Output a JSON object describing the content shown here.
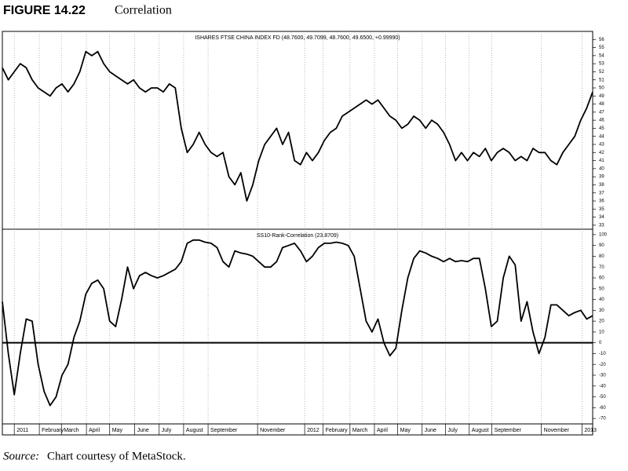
{
  "figure": {
    "label": "FIGURE 14.22",
    "title": "Correlation"
  },
  "source": {
    "label": "Source:",
    "text": "Chart courtesy of MetaStock."
  },
  "chart_data": [
    {
      "type": "line",
      "title": "ISHARES FTSE CHINA INDEX FD (48.7600, 49.7099, 48.7600, 49.6500, +0.99990)",
      "color": "#000000",
      "values": [
        52.5,
        51,
        52,
        53,
        52.5,
        51,
        50,
        49.5,
        49,
        50,
        50.5,
        49.5,
        50.5,
        52,
        54.5,
        54,
        54.5,
        53,
        52,
        51.5,
        51,
        50.5,
        51,
        50,
        49.5,
        50,
        50,
        49.5,
        50.5,
        50,
        45,
        42,
        43,
        44.5,
        43,
        42,
        41.5,
        42,
        39,
        38,
        39.5,
        36,
        38,
        41,
        43,
        44,
        45,
        43,
        44.5,
        41,
        40.5,
        42,
        41,
        42,
        43.5,
        44.5,
        45,
        46.5,
        47,
        47.5,
        48,
        48.5,
        48,
        48.5,
        47.5,
        46.5,
        46,
        45,
        45.5,
        46.5,
        46,
        45,
        46,
        45.5,
        44.5,
        43,
        41,
        42,
        41,
        42,
        41.5,
        42.5,
        41,
        42,
        42.5,
        42,
        41,
        41.5,
        41,
        42.5,
        42,
        42,
        41,
        40.5,
        42,
        43,
        44,
        46,
        47.5,
        49.5
      ],
      "ylim": [
        32.5,
        57
      ],
      "yticks": [
        33,
        34,
        35,
        36,
        37,
        38,
        39,
        40,
        41,
        42,
        43,
        44,
        45,
        46,
        47,
        48,
        49,
        50,
        51,
        52,
        53,
        54,
        55,
        56
      ]
    },
    {
      "type": "line",
      "title": "SS10-Rank-Correlation (23.8709)",
      "color": "#000000",
      "values": [
        38,
        -10,
        -48,
        -10,
        22,
        20,
        -20,
        -45,
        -58,
        -50,
        -30,
        -20,
        5,
        20,
        45,
        55,
        58,
        50,
        20,
        15,
        40,
        70,
        50,
        62,
        65,
        62,
        60,
        62,
        65,
        68,
        75,
        92,
        95,
        95,
        93,
        92,
        88,
        75,
        70,
        85,
        83,
        82,
        80,
        75,
        70,
        70,
        75,
        88,
        90,
        92,
        85,
        75,
        80,
        88,
        92,
        92,
        93,
        92,
        90,
        80,
        50,
        20,
        10,
        22,
        0,
        -12,
        -5,
        30,
        60,
        78,
        85,
        83,
        80,
        78,
        75,
        78,
        75,
        76,
        75,
        78,
        78,
        50,
        15,
        20,
        60,
        80,
        72,
        20,
        38,
        10,
        -10,
        5,
        35,
        35,
        30,
        25,
        28,
        30,
        22,
        25
      ],
      "ylim": [
        -75,
        105
      ],
      "yticks": [
        -70,
        -60,
        -50,
        -40,
        -30,
        -20,
        -10,
        0,
        10,
        20,
        30,
        40,
        50,
        60,
        70,
        80,
        90,
        100
      ],
      "hline": 0,
      "xlim": [
        0,
        99
      ],
      "xticks": [
        {
          "value": 2,
          "label": "2011"
        },
        {
          "value": 6.2,
          "label": "February"
        },
        {
          "value": 9.9,
          "label": "March"
        },
        {
          "value": 14.1,
          "label": "April"
        },
        {
          "value": 18,
          "label": "May"
        },
        {
          "value": 22.2,
          "label": "June"
        },
        {
          "value": 26.3,
          "label": "July"
        },
        {
          "value": 30.4,
          "label": "August"
        },
        {
          "value": 34.5,
          "label": "September"
        },
        {
          "value": 42.8,
          "label": "November"
        },
        {
          "value": 50.7,
          "label": "2012"
        },
        {
          "value": 53.8,
          "label": "February"
        },
        {
          "value": 58.3,
          "label": "March"
        },
        {
          "value": 62.4,
          "label": "April"
        },
        {
          "value": 66.3,
          "label": "May"
        },
        {
          "value": 70.4,
          "label": "June"
        },
        {
          "value": 74.3,
          "label": "July"
        },
        {
          "value": 78.3,
          "label": "August"
        },
        {
          "value": 82.1,
          "label": "September"
        },
        {
          "value": 90.4,
          "label": "November"
        },
        {
          "value": 97.2,
          "label": "2013"
        }
      ]
    }
  ]
}
